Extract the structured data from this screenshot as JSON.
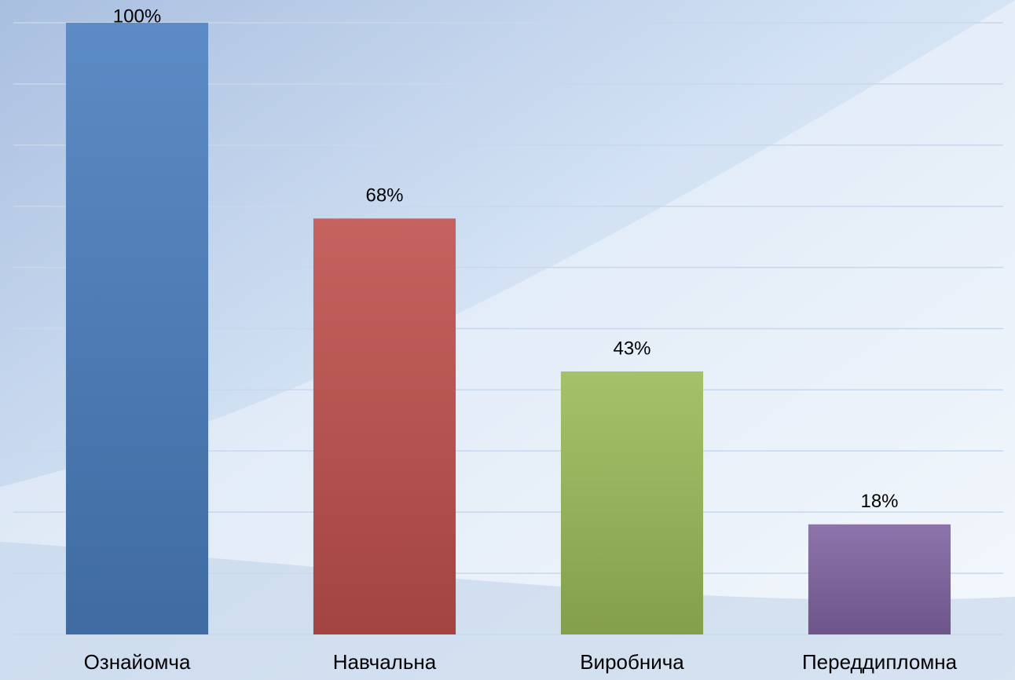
{
  "chart_data": {
    "type": "bar",
    "categories": [
      "Ознайомча",
      "Навчальна",
      "Виробнича",
      "Переддипломна"
    ],
    "values": [
      100,
      68,
      43,
      18
    ],
    "value_labels": [
      "100%",
      "68%",
      "43%",
      "18%"
    ],
    "colors": [
      "#4a7ebf",
      "#c0504d",
      "#9bbb59",
      "#8064a2"
    ],
    "ylim": [
      0,
      100
    ],
    "yticks": [
      0,
      10,
      20,
      30,
      40,
      50,
      60,
      70,
      80,
      90,
      100
    ],
    "grid": true
  }
}
